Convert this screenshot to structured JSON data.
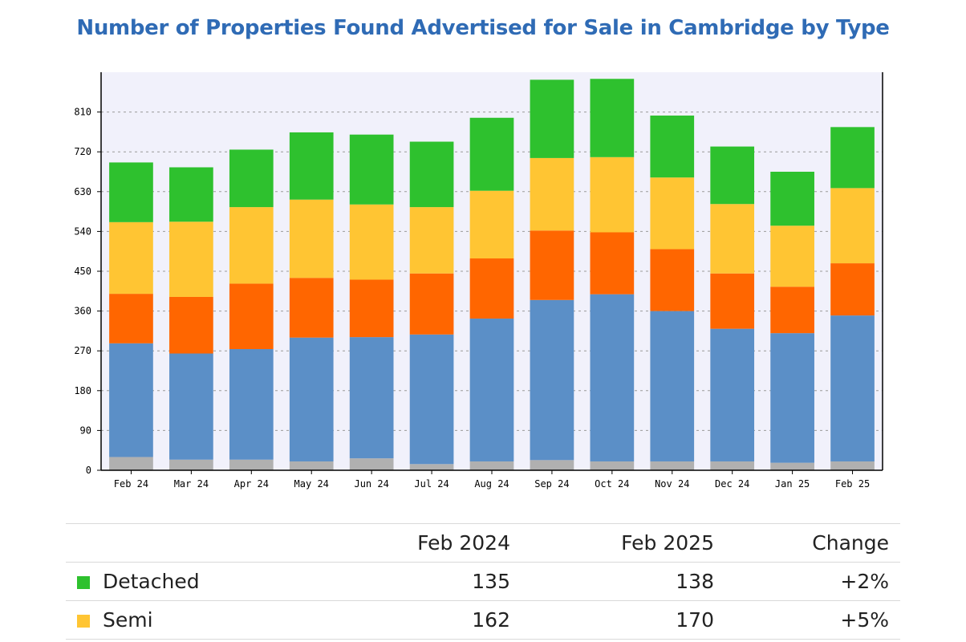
{
  "chart_data": {
    "type": "bar",
    "stacked": true,
    "title": "Number of Properties Found Advertised for Sale in Cambridge by Type",
    "categories": [
      "Feb 24",
      "Mar 24",
      "Apr 24",
      "May 24",
      "Jun 24",
      "Jul 24",
      "Aug 24",
      "Sep 24",
      "Oct 24",
      "Nov 24",
      "Dec 24",
      "Jan 25",
      "Feb 25"
    ],
    "y_ticks": [
      0,
      90,
      180,
      270,
      360,
      450,
      540,
      630,
      720,
      810
    ],
    "ylim": [
      0,
      900
    ],
    "grid": true,
    "series": [
      {
        "color": "#b0b0b0",
        "values": [
          30,
          24,
          24,
          20,
          27,
          14,
          20,
          23,
          20,
          20,
          20,
          17,
          20
        ]
      },
      {
        "color": "#5b8fc7",
        "values": [
          257,
          240,
          250,
          280,
          274,
          293,
          323,
          362,
          378,
          340,
          300,
          293,
          330
        ]
      },
      {
        "color": "#ff6600",
        "values": [
          112,
          128,
          148,
          135,
          130,
          138,
          136,
          157,
          140,
          140,
          125,
          105,
          118
        ]
      },
      {
        "name": "Semi",
        "color": "#ffc533",
        "values": [
          162,
          170,
          173,
          177,
          170,
          150,
          153,
          164,
          170,
          162,
          157,
          138,
          170
        ]
      },
      {
        "name": "Detached",
        "color": "#2ec12e",
        "values": [
          135,
          123,
          130,
          152,
          158,
          148,
          165,
          177,
          177,
          140,
          130,
          122,
          138
        ]
      }
    ]
  },
  "table": {
    "headers": [
      "",
      "Feb 2024",
      "Feb 2025",
      "Change"
    ],
    "rows": [
      {
        "color": "#2ec12e",
        "type": "Detached",
        "feb2024": "135",
        "feb2025": "138",
        "change": "+2%"
      },
      {
        "color": "#ffc533",
        "type": "Semi",
        "feb2024": "162",
        "feb2025": "170",
        "change": "+5%"
      }
    ]
  }
}
